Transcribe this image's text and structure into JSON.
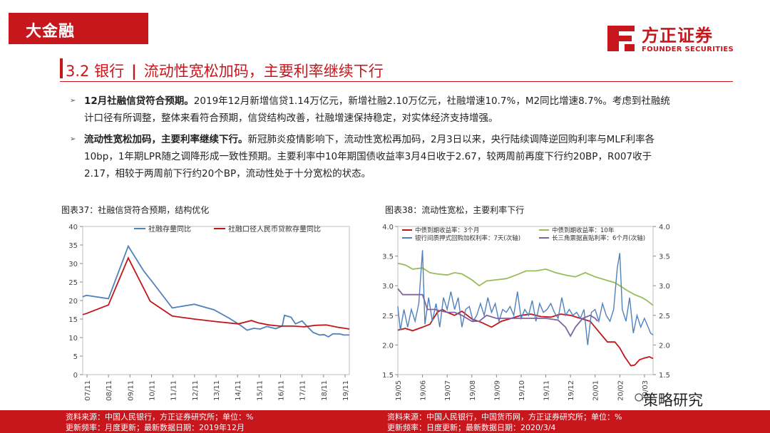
{
  "banner": {
    "title": "大金融"
  },
  "logo": {
    "cn": "方正证券",
    "en": "FOUNDER SECURITIES"
  },
  "section": {
    "number": "3.2 银行",
    "separator": "|",
    "title": "流动性宽松加码，主要利率继续下行"
  },
  "bullets": [
    {
      "bold": "12月社融信贷符合预期。",
      "text": "2019年12月新增信贷1.14万亿元，新增社融2.10万亿元，社融增速10.7%，M2同比增速8.7%。考虑到社融统计口径有所调整，整体来看符合预期，信贷结构改善，社融增速保持稳定，对实体经济支持增强。"
    },
    {
      "bold": "流动性宽松加码，主要利率继续下行。",
      "text": "新冠肺炎疫情影响下，流动性宽松再加码，2月3日以来，央行陆续调降逆回购利率与MLF利率各10bp，1年期LPR随之调降形成一致性预期。主要利率中10年期国债收益率3月4日收于2.67，较两周前再度下行约20BP，R007收于2.17，相较于两周前下行约20个BP，流动性处于十分宽松的状态。"
    }
  ],
  "charts": {
    "left": {
      "title": "图表37：社融信贷符合预期，结构优化"
    },
    "right": {
      "title": "图表38：流动性宽松，主要利率下行"
    }
  },
  "footer": {
    "left_source": "资料来源：中国人民银行，方正证券研究所；单位：%",
    "left_freq": "更新频率：月度更新；最新数据日期：2019年12月",
    "right_source": "资料来源：中国人民银行，中国货币网，方正证券研究所；单位：%",
    "right_freq": "更新频率：日度更新；最新数据日期：2020/3/4"
  },
  "watermark": {
    "text": "策略研究"
  },
  "colors": {
    "brand": "#c8161d",
    "blue": "#4f81bd",
    "red": "#c0161b",
    "green": "#9bbb59",
    "purple": "#8064a2"
  },
  "chart_data": [
    {
      "type": "line",
      "title": "图表37：社融信贷符合预期，结构优化",
      "ylim": [
        0,
        40
      ],
      "yticks": [
        "0",
        "5",
        "10",
        "15",
        "20",
        "25",
        "30",
        "35",
        "40"
      ],
      "xticks": [
        "07/11",
        "08/11",
        "09/11",
        "10/11",
        "11/11",
        "12/11",
        "13/11",
        "14/11",
        "15/11",
        "16/11",
        "17/11",
        "18/11",
        "19/11"
      ],
      "x_range": [
        2007.83,
        2019.95
      ],
      "legend_position": "top",
      "grid": false,
      "series": [
        {
          "name": "社融存量同比",
          "color": "#4f81bd",
          "points": [
            [
              2007.83,
              21.0
            ],
            [
              2008.0,
              21.4
            ],
            [
              2009.0,
              20.5
            ],
            [
              2009.9,
              34.7
            ],
            [
              2010.6,
              28.0
            ],
            [
              2011.0,
              25.0
            ],
            [
              2011.9,
              18.0
            ],
            [
              2012.9,
              19.0
            ],
            [
              2013.8,
              17.5
            ],
            [
              2014.5,
              15.2
            ],
            [
              2015.0,
              13.3
            ],
            [
              2015.3,
              12.0
            ],
            [
              2015.6,
              12.5
            ],
            [
              2015.9,
              12.3
            ],
            [
              2016.2,
              13.0
            ],
            [
              2016.6,
              12.4
            ],
            [
              2016.9,
              13.1
            ],
            [
              2017.0,
              16.0
            ],
            [
              2017.3,
              15.5
            ],
            [
              2017.5,
              13.7
            ],
            [
              2017.8,
              14.5
            ],
            [
              2018.0,
              13.2
            ],
            [
              2018.3,
              11.4
            ],
            [
              2018.6,
              10.7
            ],
            [
              2018.8,
              10.8
            ],
            [
              2019.0,
              10.2
            ],
            [
              2019.2,
              11.0
            ],
            [
              2019.5,
              11.0
            ],
            [
              2019.7,
              10.7
            ],
            [
              2019.95,
              10.7
            ]
          ]
        },
        {
          "name": "社融口径人民币贷款存量同比",
          "color": "#c0161b",
          "points": [
            [
              2007.83,
              16.2
            ],
            [
              2008.0,
              16.5
            ],
            [
              2009.0,
              18.8
            ],
            [
              2009.9,
              31.5
            ],
            [
              2010.9,
              19.8
            ],
            [
              2011.9,
              15.8
            ],
            [
              2012.9,
              15.0
            ],
            [
              2013.9,
              14.3
            ],
            [
              2014.9,
              13.7
            ],
            [
              2015.5,
              14.6
            ],
            [
              2015.8,
              14.0
            ],
            [
              2016.3,
              13.4
            ],
            [
              2016.8,
              13.1
            ],
            [
              2017.4,
              13.1
            ],
            [
              2017.9,
              12.9
            ],
            [
              2018.4,
              13.3
            ],
            [
              2018.9,
              13.4
            ],
            [
              2019.4,
              12.8
            ],
            [
              2019.95,
              12.3
            ]
          ]
        }
      ]
    },
    {
      "type": "line",
      "title": "图表38：流动性宽松，主要利率下行",
      "ylim": [
        1.5,
        4.0
      ],
      "y2lim": [
        1.5,
        4.0
      ],
      "yticks": [
        "1.5",
        "2.0",
        "2.5",
        "3.0",
        "3.5",
        "4.0"
      ],
      "xticks": [
        "19/05",
        "19/06",
        "19/07",
        "19/08",
        "19/09",
        "19/10",
        "19/11",
        "19/12",
        "20/01",
        "20/02",
        "20/03"
      ],
      "legend_position": "top",
      "grid": false,
      "series": [
        {
          "name": "中债到期收益率：3个月",
          "color": "#c0161b",
          "points": [
            [
              0,
              2.25
            ],
            [
              0.3,
              2.28
            ],
            [
              0.6,
              2.24
            ],
            [
              1.0,
              2.3
            ],
            [
              1.3,
              2.35
            ],
            [
              1.6,
              2.55
            ],
            [
              1.8,
              2.6
            ],
            [
              2.0,
              2.55
            ],
            [
              2.3,
              2.5
            ],
            [
              2.6,
              2.57
            ],
            [
              3.0,
              2.44
            ],
            [
              3.4,
              2.38
            ],
            [
              3.8,
              2.3
            ],
            [
              4.2,
              2.4
            ],
            [
              4.6,
              2.45
            ],
            [
              5.0,
              2.5
            ],
            [
              5.4,
              2.52
            ],
            [
              5.8,
              2.48
            ],
            [
              6.2,
              2.47
            ],
            [
              6.6,
              2.52
            ],
            [
              7.0,
              2.5
            ],
            [
              7.4,
              2.45
            ],
            [
              7.8,
              2.4
            ],
            [
              8.2,
              2.2
            ],
            [
              8.5,
              2.05
            ],
            [
              8.8,
              2.05
            ],
            [
              9.0,
              1.95
            ],
            [
              9.2,
              1.8
            ],
            [
              9.45,
              1.65
            ],
            [
              9.6,
              1.66
            ],
            [
              9.8,
              1.75
            ],
            [
              10.0,
              1.78
            ],
            [
              10.2,
              1.8
            ],
            [
              10.35,
              1.77
            ]
          ]
        },
        {
          "name": "中债到期收益率：10年",
          "color": "#9bbb59",
          "points": [
            [
              0,
              3.38
            ],
            [
              0.3,
              3.35
            ],
            [
              0.6,
              3.28
            ],
            [
              1.0,
              3.3
            ],
            [
              1.3,
              3.22
            ],
            [
              1.6,
              3.2
            ],
            [
              2.0,
              3.18
            ],
            [
              2.3,
              3.22
            ],
            [
              2.6,
              3.2
            ],
            [
              3.0,
              3.1
            ],
            [
              3.3,
              3.0
            ],
            [
              3.6,
              3.08
            ],
            [
              4.0,
              3.1
            ],
            [
              4.4,
              3.12
            ],
            [
              4.8,
              3.18
            ],
            [
              5.2,
              3.25
            ],
            [
              5.6,
              3.25
            ],
            [
              6.0,
              3.28
            ],
            [
              6.4,
              3.22
            ],
            [
              6.8,
              3.18
            ],
            [
              7.2,
              3.15
            ],
            [
              7.6,
              3.22
            ],
            [
              8.0,
              3.15
            ],
            [
              8.4,
              3.1
            ],
            [
              8.8,
              3.05
            ],
            [
              9.0,
              3.0
            ],
            [
              9.3,
              2.92
            ],
            [
              9.6,
              2.85
            ],
            [
              9.9,
              2.8
            ],
            [
              10.1,
              2.75
            ],
            [
              10.35,
              2.67
            ]
          ]
        },
        {
          "name": "银行间质押式回购加权利率：7天(次轴)",
          "color": "#4f81bd",
          "points": [
            [
              0,
              2.65
            ],
            [
              0.1,
              2.25
            ],
            [
              0.25,
              2.6
            ],
            [
              0.4,
              2.3
            ],
            [
              0.55,
              2.6
            ],
            [
              0.7,
              2.4
            ],
            [
              0.85,
              2.7
            ],
            [
              1.0,
              3.6
            ],
            [
              1.1,
              2.35
            ],
            [
              1.25,
              2.8
            ],
            [
              1.4,
              2.4
            ],
            [
              1.55,
              2.7
            ],
            [
              1.7,
              2.3
            ],
            [
              1.85,
              2.8
            ],
            [
              2.0,
              2.6
            ],
            [
              2.15,
              2.9
            ],
            [
              2.3,
              2.6
            ],
            [
              2.45,
              2.8
            ],
            [
              2.6,
              2.3
            ],
            [
              2.75,
              2.6
            ],
            [
              2.9,
              2.65
            ],
            [
              3.05,
              2.4
            ],
            [
              3.2,
              2.5
            ],
            [
              3.35,
              2.7
            ],
            [
              3.5,
              2.5
            ],
            [
              3.65,
              2.8
            ],
            [
              3.8,
              2.55
            ],
            [
              3.95,
              2.7
            ],
            [
              4.1,
              2.4
            ],
            [
              4.25,
              2.6
            ],
            [
              4.4,
              2.55
            ],
            [
              4.55,
              2.65
            ],
            [
              4.7,
              2.5
            ],
            [
              4.85,
              2.9
            ],
            [
              5.0,
              2.45
            ],
            [
              5.15,
              2.6
            ],
            [
              5.3,
              2.5
            ],
            [
              5.45,
              2.75
            ],
            [
              5.6,
              2.4
            ],
            [
              5.75,
              2.7
            ],
            [
              5.9,
              2.55
            ],
            [
              6.05,
              2.6
            ],
            [
              6.2,
              2.7
            ],
            [
              6.35,
              2.55
            ],
            [
              6.5,
              2.45
            ],
            [
              6.65,
              2.8
            ],
            [
              6.8,
              2.5
            ],
            [
              6.95,
              2.6
            ],
            [
              7.1,
              2.5
            ],
            [
              7.25,
              2.55
            ],
            [
              7.4,
              2.45
            ],
            [
              7.55,
              2.6
            ],
            [
              7.7,
              2.0
            ],
            [
              7.85,
              2.55
            ],
            [
              8.0,
              2.6
            ],
            [
              8.15,
              2.4
            ],
            [
              8.3,
              2.7
            ],
            [
              8.45,
              2.5
            ],
            [
              8.6,
              2.4
            ],
            [
              8.75,
              2.6
            ],
            [
              8.9,
              3.3
            ],
            [
              9.0,
              3.55
            ],
            [
              9.1,
              2.6
            ],
            [
              9.25,
              2.4
            ],
            [
              9.4,
              2.8
            ],
            [
              9.55,
              2.2
            ],
            [
              9.7,
              2.5
            ],
            [
              9.85,
              2.3
            ],
            [
              10.0,
              2.45
            ],
            [
              10.15,
              2.3
            ],
            [
              10.25,
              2.2
            ],
            [
              10.35,
              2.17
            ]
          ]
        },
        {
          "name": "长三角票据直贴利率：6个月(次轴)",
          "color": "#8064a2",
          "points": [
            [
              0,
              2.95
            ],
            [
              0.2,
              2.85
            ],
            [
              0.5,
              2.85
            ],
            [
              1.0,
              2.85
            ],
            [
              1.2,
              2.6
            ],
            [
              1.5,
              2.6
            ],
            [
              2.0,
              2.55
            ],
            [
              2.3,
              2.55
            ],
            [
              2.6,
              2.5
            ],
            [
              2.8,
              2.45
            ],
            [
              3.0,
              2.4
            ],
            [
              3.3,
              2.4
            ],
            [
              3.6,
              2.5
            ],
            [
              4.0,
              2.45
            ],
            [
              4.5,
              2.45
            ],
            [
              5.0,
              2.45
            ],
            [
              5.5,
              2.45
            ],
            [
              6.0,
              2.45
            ],
            [
              6.5,
              2.42
            ],
            [
              6.8,
              2.3
            ],
            [
              7.0,
              2.15
            ],
            [
              7.2,
              2.3
            ],
            [
              7.5,
              2.45
            ],
            [
              7.8,
              2.5
            ],
            [
              8.0,
              2.45
            ],
            [
              8.1,
              2.4
            ]
          ]
        }
      ]
    }
  ]
}
